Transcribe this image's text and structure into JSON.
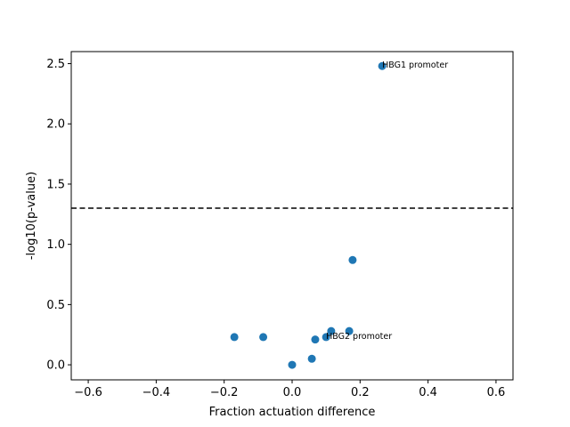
{
  "chart_data": {
    "type": "scatter",
    "title": "",
    "xlabel": "Fraction actuation difference",
    "ylabel": "-log10(p-value)",
    "xlim": [
      -0.65,
      0.65
    ],
    "ylim": [
      -0.125,
      2.6
    ],
    "xticks": [
      -0.6,
      -0.4,
      -0.2,
      0.0,
      0.2,
      0.4,
      0.6
    ],
    "xtick_labels": [
      "−0.6",
      "−0.4",
      "−0.2",
      "0.0",
      "0.2",
      "0.4",
      "0.6"
    ],
    "yticks": [
      0.0,
      0.5,
      1.0,
      1.5,
      2.0,
      2.5
    ],
    "ytick_labels": [
      "0.0",
      "0.5",
      "1.0",
      "1.5",
      "2.0",
      "2.5"
    ],
    "marker_color": "#1f77b4",
    "grid": false,
    "points": [
      {
        "x": 0.265,
        "y": 2.48
      },
      {
        "x": 0.178,
        "y": 0.87
      },
      {
        "x": 0.168,
        "y": 0.28
      },
      {
        "x": 0.115,
        "y": 0.28
      },
      {
        "x": 0.1,
        "y": 0.23
      },
      {
        "x": 0.068,
        "y": 0.21
      },
      {
        "x": -0.17,
        "y": 0.23
      },
      {
        "x": -0.085,
        "y": 0.23
      },
      {
        "x": 0.058,
        "y": 0.05
      },
      {
        "x": 0.0,
        "y": 0.0
      }
    ],
    "threshold_line": {
      "y": 1.3,
      "style": "dashed",
      "color": "#000000"
    },
    "annotations": [
      {
        "text": "HBG1 promoter",
        "x": 0.265,
        "y": 2.48
      },
      {
        "text": "HBG2 promoter",
        "x": 0.1,
        "y": 0.23
      }
    ]
  }
}
